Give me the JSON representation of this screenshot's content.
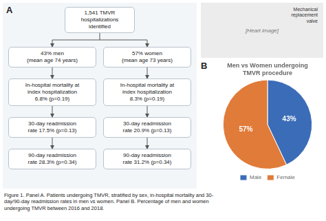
{
  "chart_data": {
    "type": "pie",
    "title": "Men vs Women undergoing\nTMVR procedure",
    "categories": [
      "Male",
      "Female"
    ],
    "values": [
      43,
      57
    ],
    "value_labels": [
      "43%",
      "57%"
    ],
    "data_labels": true,
    "colors": [
      "#3b6cb7",
      "#e07b39"
    ],
    "legend": "bottom",
    "annotations": [
      "A",
      "1,541 TMVR\nhospitalizations\nidentified",
      "43% men\n(mean age 74 years)",
      "57% women\n(mean age 73 years)",
      "In-hospital mortality at\nindex hospitalization\n6.8% (p=0.19)",
      "In-hospital mortality at\nindex hospitalization\n8.3% (p=0.19)",
      "30-day readmission\nrate 17.5% (p=0.13)",
      "30-day readmission\nrate 20.9% (p=0.13)",
      "90-day readmission\nrate 28.3% (p=0.34)",
      "90-day readmission\nrate 31.2% (p=0.34)",
      "B",
      "[Heart image]",
      "Mechanical\nreplacement\nvalve",
      "Figure 1. Panel A. Patients undergoing TMVR, stratified by sex, in-hospital mortality and 30-\nday/90-day readmission rates in men vs women. Panel B. Percentage of men and women\nundergoing TMVR between 2016 and 2018."
    ]
  }
}
